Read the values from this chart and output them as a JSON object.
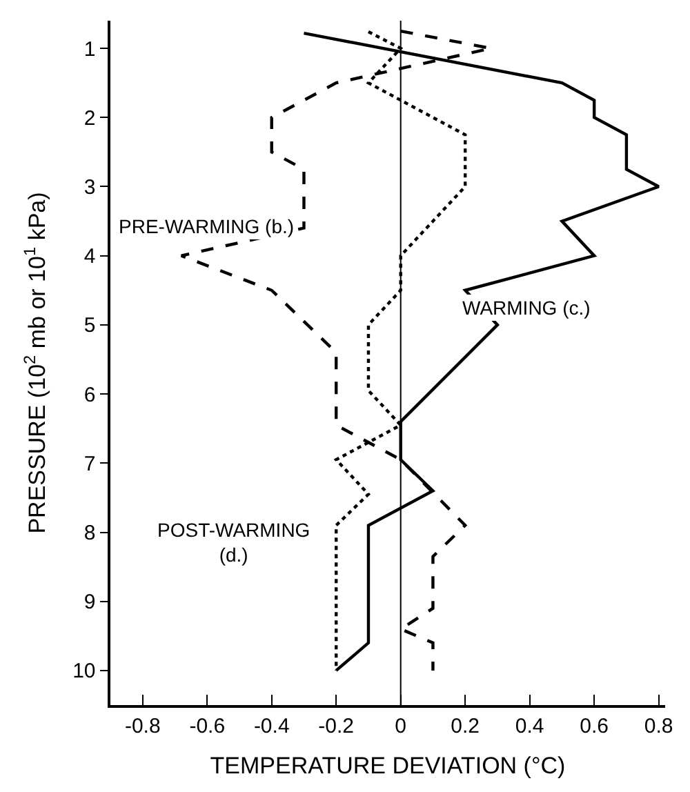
{
  "chart_data": {
    "type": "line",
    "xlabel": "TEMPERATURE DEVIATION (°C)",
    "ylabel": "PRESSURE (10$^{2}$ mb or 10$^{1}$ kPa)",
    "xlim": [
      -0.9,
      0.82
    ],
    "xticks": [
      -0.8,
      -0.6,
      -0.4,
      -0.2,
      0,
      0.2,
      0.4,
      0.6,
      0.8
    ],
    "ylim": [
      10.5,
      0.6
    ],
    "yticks": [
      1,
      2,
      3,
      4,
      5,
      6,
      7,
      8,
      9,
      10
    ],
    "legend": false,
    "marker": "none",
    "series": [
      {
        "name": "PRE-WARMING (b.)",
        "color": "#000000",
        "line_style": "dashed",
        "x": [
          0,
          0.28,
          -0.2,
          -0.4,
          -0.4,
          -0.3,
          -0.3,
          -0.68,
          -0.4,
          -0.2,
          -0.2,
          0,
          0.2,
          0.1,
          0.1,
          0,
          0.1,
          0.1
        ],
        "values": [
          0.75,
          1.0,
          1.5,
          2.0,
          2.5,
          2.75,
          3.6,
          4.0,
          4.5,
          5.4,
          6.45,
          6.95,
          7.9,
          8.35,
          9.1,
          9.4,
          9.6,
          10.0
        ]
      },
      {
        "name": "WARMING (c.)",
        "color": "#000000",
        "line_style": "solid",
        "x": [
          -0.3,
          0.5,
          0.6,
          0.6,
          0.7,
          0.7,
          0.8,
          0.5,
          0.6,
          0.2,
          0.3,
          0,
          0,
          0.1,
          -0.1,
          -0.1,
          -0.2
        ],
        "values": [
          0.78,
          1.5,
          1.75,
          2.0,
          2.25,
          2.75,
          3.0,
          3.5,
          4.0,
          4.5,
          5.0,
          6.4,
          6.95,
          7.4,
          7.9,
          9.6,
          10.0
        ]
      },
      {
        "name": "POST-WARMING\n(d.)",
        "color": "#000000",
        "line_style": "dotted",
        "x": [
          -0.1,
          0,
          -0.1,
          0.2,
          0.2,
          0,
          0,
          -0.1,
          -0.1,
          0,
          -0.2,
          -0.1,
          -0.2,
          -0.2
        ],
        "values": [
          0.76,
          1.0,
          1.5,
          2.25,
          3.0,
          4.0,
          4.5,
          5.0,
          5.95,
          6.45,
          6.95,
          7.45,
          7.9,
          10.0
        ]
      }
    ],
    "ref_lines": [
      {
        "axis": "x",
        "value": 0,
        "color": "#000000"
      }
    ]
  }
}
